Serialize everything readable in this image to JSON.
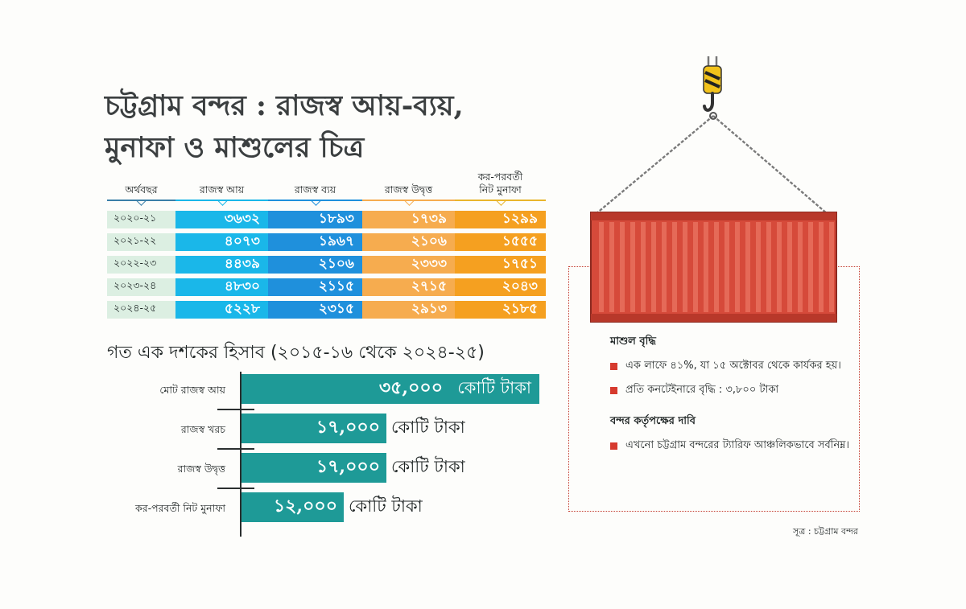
{
  "title": {
    "line1": "চট্টগ্রাম বন্দর : রাজস্ব আয়-ব্যয়,",
    "line2": "মুনাফা ও মাশুলের চিত্র"
  },
  "table": {
    "headers": [
      "অর্থবছর",
      "রাজস্ব আয়",
      "রাজস্ব ব্যয়",
      "রাজস্ব উদ্বৃত্ত",
      "কর-পরবর্তী নিট মুনাফা"
    ],
    "rows": [
      {
        "year": "২০২০-২১",
        "revenue": "৩৬৩২",
        "expense": "১৮৯৩",
        "surplus": "১৭৩৯",
        "profit": "১২৯৯"
      },
      {
        "year": "২০২১-২২",
        "revenue": "৪০৭৩",
        "expense": "১৯৬৭",
        "surplus": "২১০৬",
        "profit": "১৫৫৫"
      },
      {
        "year": "২০২২-২৩",
        "revenue": "৪৪৩৯",
        "expense": "২১০৬",
        "surplus": "২৩৩৩",
        "profit": "১৭৫১"
      },
      {
        "year": "২০২৩-২৪",
        "revenue": "৪৮৩০",
        "expense": "২১১৫",
        "surplus": "২৭১৫",
        "profit": "২০৪৩"
      },
      {
        "year": "২০২৪-২৫",
        "revenue": "৫২২৮",
        "expense": "২৩১৫",
        "surplus": "২৯১৩",
        "profit": "২১৮৫"
      }
    ]
  },
  "decade": {
    "title": "গত এক দশকের হিসাব (২০১৫-১৬ থেকে ২০২৪-২৫)"
  },
  "chart_data": {
    "type": "bar",
    "orientation": "horizontal",
    "title": "গত এক দশকের হিসাব (২০১৫-১৬ থেকে ২০২৪-২৫)",
    "categories": [
      "মোট রাজস্ব আয়",
      "রাজস্ব খরচ",
      "রাজস্ব উদ্বৃত্ত",
      "কর-পরবর্তী নিট মুনাফা"
    ],
    "values": [
      35000,
      17000,
      17000,
      12000
    ],
    "value_labels": [
      "৩৫,০০০",
      "১৭,০০০",
      "১৭,০০০",
      "১২,০০০"
    ],
    "unit": "কোটি টাকা",
    "xlim": [
      0,
      35000
    ],
    "bar_color": "#1e9a97",
    "grid": false,
    "legend": "none"
  },
  "info": {
    "section1_heading": "মাশুল বৃদ্ধি",
    "section1_items": [
      "এক লাফে ৪১%, যা ১৫ অক্টোবর থেকে কার্যকর হয়।",
      "প্রতি কনটেইনারে বৃদ্ধি : ৩,৮০০ টাকা"
    ],
    "section2_heading": "বন্দর কর্তৃপক্ষের দাবি",
    "section2_items": [
      "এখনো চট্টগ্রাম বন্দরের ট্যারিফ আঞ্চলিকভাবে সর্বনিম্ন।"
    ]
  },
  "source": "সূত্র : চট্টগ্রাম বন্দর",
  "colors": {
    "revenue": "#1ab7e9",
    "expense": "#1f90dc",
    "surplus": "#f6ac4f",
    "profit": "#f5a020",
    "year_bg": "#dcefe2",
    "bar": "#1e9a97",
    "container": "#d64a3a",
    "accent_red": "#d63a2e"
  },
  "icons": [
    "crane-hook-icon",
    "chain-icon",
    "shipping-container-icon",
    "bullet-square-icon"
  ]
}
